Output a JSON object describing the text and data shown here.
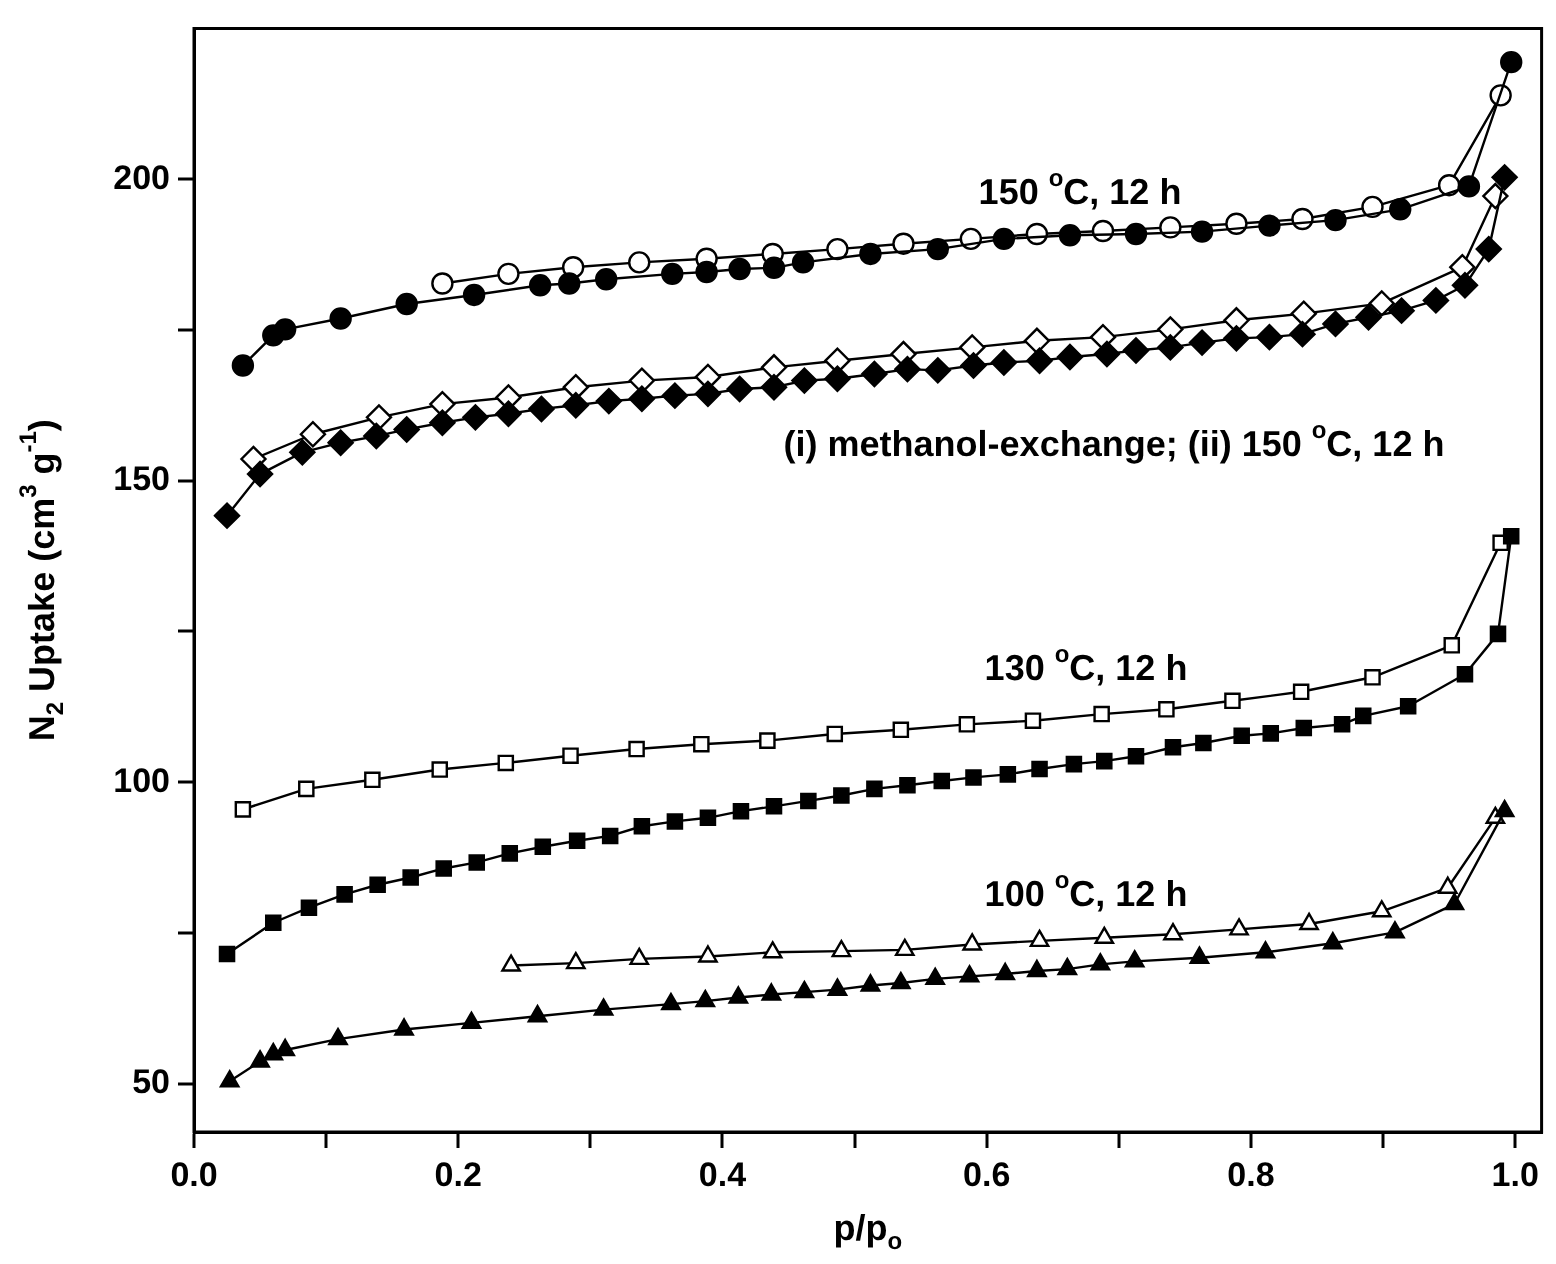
{
  "chart_data": {
    "type": "line",
    "xlabel": "p/p$_{o}$",
    "ylabel": "N$_{2}$ Uptake (cm$^{3}$ g$^{-1}$)",
    "xlim": [
      0,
      1.02
    ],
    "ylim": [
      42,
      225
    ],
    "xticks": [
      {
        "value": 0,
        "label": "0.0"
      },
      {
        "value": 0.1,
        "label": null
      },
      {
        "value": 0.2,
        "label": "0.2"
      },
      {
        "value": 0.3,
        "label": null
      },
      {
        "value": 0.4,
        "label": "0.4"
      },
      {
        "value": 0.5,
        "label": null
      },
      {
        "value": 0.6,
        "label": "0.6"
      },
      {
        "value": 0.7,
        "label": null
      },
      {
        "value": 0.8,
        "label": "0.8"
      },
      {
        "value": 0.9,
        "label": null
      },
      {
        "value": 1.0,
        "label": "1.0"
      }
    ],
    "yticks": [
      50,
      {
        "value": 75,
        "label": null
      },
      100,
      {
        "value": 125,
        "label": null
      },
      150,
      {
        "value": 175,
        "label": null
      },
      200
    ],
    "grid": false,
    "legend": false,
    "annotations": [
      "150 $^{o}$C, 12 h",
      "(i) methanol-exchange; (ii) 150 $^{o}$C, 12 h",
      "130 $^{o}$C, 12 h",
      "100 $^{o}$C, 12 h"
    ],
    "series": [
      {
        "color": "#000000",
        "marker": "circle",
        "x": [
          0.037,
          0.06,
          0.069,
          0.111,
          0.161,
          0.212,
          0.262,
          0.284,
          0.312,
          0.362,
          0.388,
          0.413,
          0.439,
          0.461,
          0.512,
          0.563,
          0.613,
          0.663,
          0.713,
          0.763,
          0.814,
          0.864,
          0.913,
          0.965,
          0.997
        ],
        "values": [
          169.1,
          174.1,
          175.1,
          176.9,
          179.3,
          180.8,
          182.4,
          182.7,
          183.4,
          184.3,
          184.6,
          185.1,
          185.3,
          186.2,
          187.6,
          188.4,
          190.1,
          190.7,
          190.9,
          191.3,
          192.3,
          193.2,
          195.0,
          198.8,
          219.4
        ]
      },
      {
        "color": "#ffffff",
        "marker": "circle",
        "x": [
          0.188,
          0.238,
          0.287,
          0.337,
          0.388,
          0.438,
          0.487,
          0.537,
          0.588,
          0.638,
          0.688,
          0.739,
          0.789,
          0.839,
          0.892,
          0.95,
          0.989
        ],
        "values": [
          182.7,
          184.3,
          185.4,
          186.2,
          186.8,
          187.6,
          188.4,
          189.3,
          190.1,
          190.9,
          191.4,
          192.0,
          192.6,
          193.4,
          195.4,
          199.0,
          213.9
        ]
      },
      {
        "color": "#000000",
        "marker": "diamond",
        "x": [
          0.025,
          0.05,
          0.082,
          0.111,
          0.138,
          0.161,
          0.188,
          0.213,
          0.238,
          0.263,
          0.289,
          0.314,
          0.339,
          0.364,
          0.389,
          0.413,
          0.439,
          0.462,
          0.487,
          0.515,
          0.54,
          0.563,
          0.59,
          0.613,
          0.64,
          0.663,
          0.691,
          0.713,
          0.739,
          0.763,
          0.789,
          0.814,
          0.839,
          0.864,
          0.889,
          0.914,
          0.94,
          0.962,
          0.98,
          0.992
        ],
        "values": [
          144.2,
          151.1,
          154.7,
          156.3,
          157.4,
          158.5,
          159.6,
          160.5,
          161.1,
          161.9,
          162.5,
          163.2,
          163.6,
          164.1,
          164.4,
          165.2,
          165.5,
          166.6,
          166.9,
          167.7,
          168.5,
          168.3,
          169.1,
          169.6,
          169.9,
          170.5,
          171.0,
          171.6,
          172.1,
          172.9,
          173.6,
          173.8,
          174.3,
          176.0,
          177.1,
          178.2,
          179.9,
          182.4,
          188.4,
          200.3
        ]
      },
      {
        "color": "#ffffff",
        "marker": "diamond",
        "x": [
          0.045,
          0.09,
          0.14,
          0.188,
          0.238,
          0.289,
          0.339,
          0.389,
          0.439,
          0.487,
          0.537,
          0.589,
          0.638,
          0.688,
          0.739,
          0.789,
          0.84,
          0.899,
          0.96,
          0.985
        ],
        "values": [
          153.6,
          157.7,
          160.5,
          162.7,
          163.8,
          165.5,
          166.6,
          167.2,
          168.8,
          169.9,
          171.0,
          172.1,
          173.2,
          173.8,
          175.1,
          176.6,
          177.7,
          179.4,
          185.4,
          197.2
        ]
      },
      {
        "color": "#000000",
        "marker": "square",
        "x": [
          0.025,
          0.06,
          0.087,
          0.114,
          0.139,
          0.164,
          0.189,
          0.214,
          0.239,
          0.264,
          0.29,
          0.315,
          0.339,
          0.364,
          0.389,
          0.414,
          0.439,
          0.465,
          0.49,
          0.515,
          0.54,
          0.566,
          0.59,
          0.616,
          0.64,
          0.666,
          0.689,
          0.713,
          0.741,
          0.764,
          0.793,
          0.815,
          0.84,
          0.869,
          0.885,
          0.919,
          0.962,
          0.987,
          0.997
        ],
        "values": [
          71.5,
          76.7,
          79.2,
          81.4,
          83.0,
          84.2,
          85.7,
          86.7,
          88.2,
          89.3,
          90.3,
          91.1,
          92.7,
          93.5,
          94.1,
          95.2,
          96.0,
          96.9,
          97.8,
          98.9,
          99.5,
          100.2,
          100.8,
          101.3,
          102.2,
          103.0,
          103.5,
          104.3,
          105.8,
          106.5,
          107.7,
          108.1,
          109.0,
          109.6,
          111.0,
          112.6,
          117.9,
          124.6,
          140.8
        ]
      },
      {
        "color": "#ffffff",
        "marker": "square",
        "x": [
          0.037,
          0.085,
          0.135,
          0.186,
          0.236,
          0.285,
          0.335,
          0.384,
          0.434,
          0.485,
          0.535,
          0.585,
          0.635,
          0.687,
          0.736,
          0.786,
          0.838,
          0.892,
          0.952,
          0.989
        ],
        "values": [
          95.5,
          98.9,
          100.4,
          102.1,
          103.2,
          104.4,
          105.5,
          106.3,
          106.9,
          108.0,
          108.7,
          109.6,
          110.2,
          111.3,
          112.1,
          113.5,
          115.0,
          117.4,
          122.7,
          139.7
        ]
      },
      {
        "color": "#000000",
        "marker": "triangle",
        "x": [
          0.027,
          0.05,
          0.06,
          0.069,
          0.109,
          0.159,
          0.21,
          0.26,
          0.31,
          0.361,
          0.387,
          0.412,
          0.437,
          0.462,
          0.487,
          0.512,
          0.535,
          0.561,
          0.587,
          0.614,
          0.638,
          0.661,
          0.686,
          0.712,
          0.761,
          0.811,
          0.862,
          0.909,
          0.954,
          0.992
        ],
        "values": [
          50.4,
          53.7,
          54.9,
          55.6,
          57.4,
          59.0,
          60.1,
          61.2,
          62.3,
          63.2,
          63.7,
          64.3,
          64.8,
          65.2,
          65.6,
          66.3,
          66.7,
          67.4,
          67.8,
          68.2,
          68.7,
          69.0,
          69.8,
          70.3,
          70.9,
          71.8,
          73.3,
          75.1,
          79.8,
          95.2
        ]
      },
      {
        "color": "#ffffff",
        "marker": "triangle",
        "x": [
          0.24,
          0.289,
          0.337,
          0.389,
          0.438,
          0.49,
          0.538,
          0.589,
          0.64,
          0.689,
          0.741,
          0.791,
          0.844,
          0.899,
          0.949,
          0.985
        ],
        "values": [
          69.6,
          70.0,
          70.7,
          71.1,
          71.8,
          72.0,
          72.2,
          73.1,
          73.7,
          74.2,
          74.8,
          75.6,
          76.5,
          78.6,
          82.5,
          94.1
        ]
      }
    ]
  }
}
